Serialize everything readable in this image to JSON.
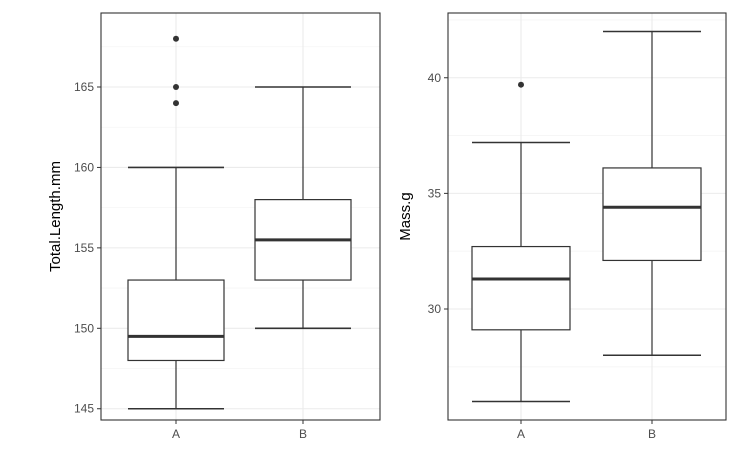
{
  "chart_data": [
    {
      "type": "boxplot",
      "ylabel": "Total.Length.mm",
      "xlabel": "",
      "categories": [
        "A",
        "B"
      ],
      "ylim": [
        144.3,
        169.6
      ],
      "y_ticks": [
        145,
        150,
        155,
        160,
        165
      ],
      "grid": true,
      "boxes": [
        {
          "category": "A",
          "whisker_low": 145,
          "q1": 148,
          "median": 149.5,
          "q3": 153,
          "whisker_high": 160,
          "outliers": [
            164,
            165,
            168
          ]
        },
        {
          "category": "B",
          "whisker_low": 150,
          "q1": 153,
          "median": 155.5,
          "q3": 158,
          "whisker_high": 165,
          "outliers": []
        }
      ]
    },
    {
      "type": "boxplot",
      "ylabel": "Mass.g",
      "xlabel": "",
      "categories": [
        "A",
        "B"
      ],
      "ylim": [
        25.2,
        42.8
      ],
      "y_ticks": [
        30,
        35,
        40
      ],
      "grid": true,
      "boxes": [
        {
          "category": "A",
          "whisker_low": 26,
          "q1": 29.1,
          "median": 31.3,
          "q3": 32.7,
          "whisker_high": 37.2,
          "outliers": [
            39.7
          ]
        },
        {
          "category": "B",
          "whisker_low": 28,
          "q1": 32.1,
          "median": 34.4,
          "q3": 36.1,
          "whisker_high": 42,
          "outliers": []
        }
      ]
    }
  ],
  "colors": {
    "panel_border": "#333333",
    "grid_major": "#ebebeb",
    "grid_minor": "#f5f5f5",
    "box_line": "#333333",
    "outlier": "#333333",
    "tick_text": "#4d4d4d",
    "title_text": "#000000"
  }
}
